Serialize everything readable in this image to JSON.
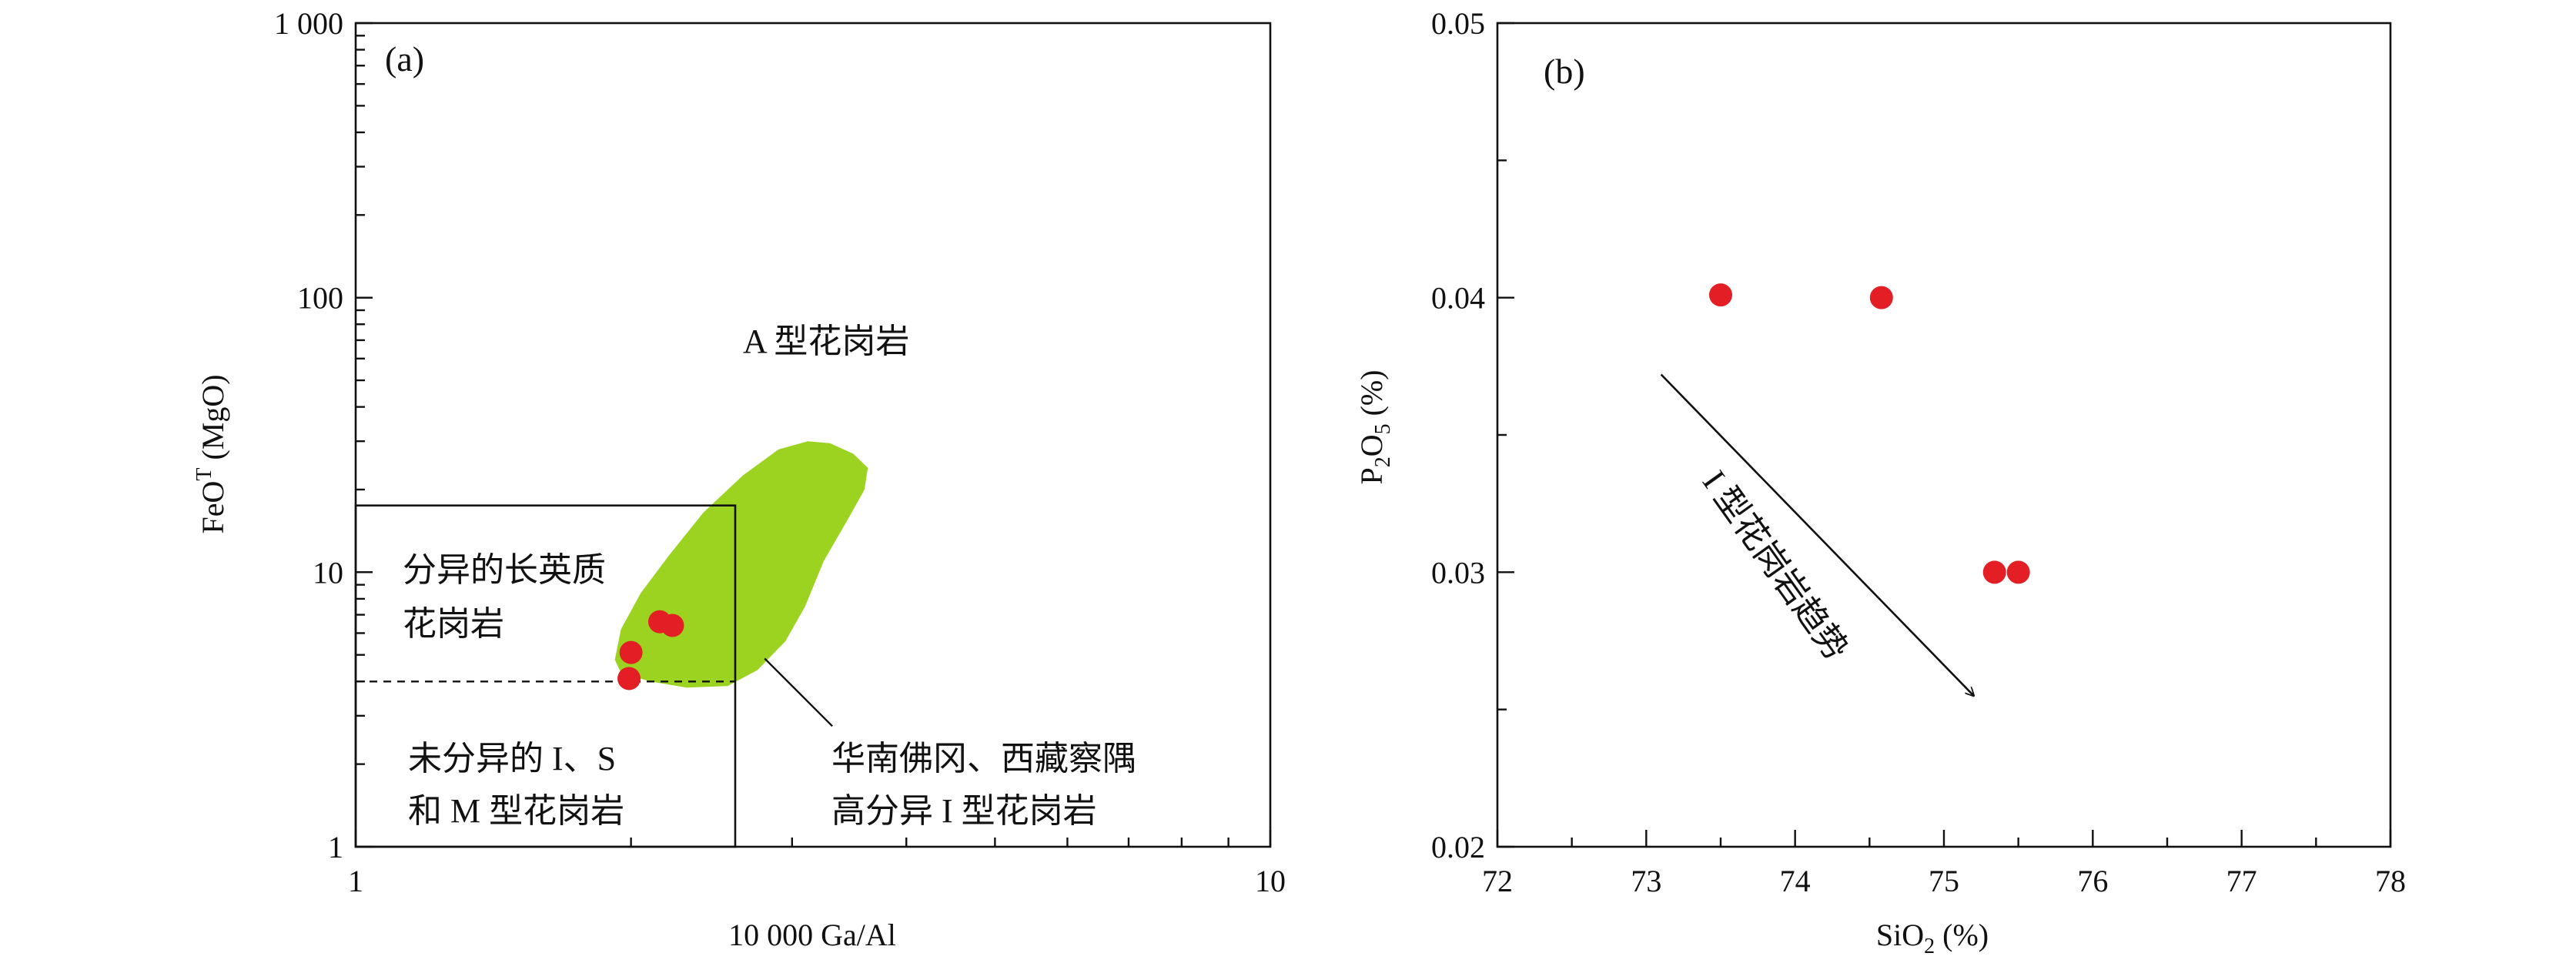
{
  "colors": {
    "point": "#e31e24",
    "field": "#9bd320",
    "axis": "#111111"
  },
  "chart_data": [
    {
      "type": "scatter",
      "panel_label": "(a)",
      "xlabel": "10 000 Ga/Al",
      "ylabel_prefix": "FeO",
      "ylabel_sup": "T",
      "ylabel_suffix": " (MgO)",
      "x_scale": "log",
      "y_scale": "log",
      "xlim": [
        1,
        10
      ],
      "ylim": [
        1,
        1000
      ],
      "x_ticks": [
        {
          "value": 1,
          "label": "1"
        },
        {
          "value": 10,
          "label": "10"
        }
      ],
      "y_ticks": [
        {
          "value": 1,
          "label": "1"
        },
        {
          "value": 10,
          "label": "10"
        },
        {
          "value": 100,
          "label": "100"
        },
        {
          "value": 1000,
          "label": "1 000"
        }
      ],
      "points": [
        {
          "x": 2.0,
          "y": 5.1
        },
        {
          "x": 1.99,
          "y": 4.1
        },
        {
          "x": 2.15,
          "y": 6.6
        },
        {
          "x": 2.22,
          "y": 6.4
        }
      ],
      "regions": {
        "a_type": "A 型花岗岩",
        "fractionated_line1": "分异的长英质",
        "fractionated_line2": "花岗岩",
        "unfractionated_line1": "未分异的 I、S",
        "unfractionated_line2": "和 M 型花岗岩",
        "south_china_line1": "华南佛冈、西藏察隅",
        "south_china_line2": "高分异 I 型花岗岩"
      },
      "fractionated_box": {
        "x_max": 2.6,
        "y_max": 17.5
      },
      "dashed_line_y": 4.0,
      "field_polygon": [
        [
          1.92,
          4.8
        ],
        [
          1.95,
          6.2
        ],
        [
          2.05,
          8.4
        ],
        [
          2.2,
          11.5
        ],
        [
          2.4,
          16.5
        ],
        [
          2.65,
          22.5
        ],
        [
          2.9,
          28.0
        ],
        [
          3.12,
          30.0
        ],
        [
          3.3,
          29.5
        ],
        [
          3.5,
          27.0
        ],
        [
          3.63,
          24.0
        ],
        [
          3.6,
          20.0
        ],
        [
          3.45,
          15.5
        ],
        [
          3.25,
          11.0
        ],
        [
          3.1,
          7.5
        ],
        [
          2.95,
          5.6
        ],
        [
          2.75,
          4.4
        ],
        [
          2.55,
          3.85
        ],
        [
          2.3,
          3.8
        ],
        [
          2.1,
          4.0
        ],
        [
          1.95,
          4.3
        ]
      ],
      "leader_line": [
        [
          2.8,
          4.85
        ],
        [
          3.32,
          2.75
        ]
      ]
    },
    {
      "type": "scatter",
      "panel_label": "(b)",
      "xlabel_prefix": "SiO",
      "xlabel_sub": "2",
      "xlabel_suffix": " (%)",
      "ylabel_p": "P",
      "ylabel_sub1": "2",
      "ylabel_o": "O",
      "ylabel_sub2": "5",
      "ylabel_suffix": " (%)",
      "xlim": [
        72,
        78
      ],
      "ylim": [
        0.02,
        0.05
      ],
      "x_ticks": [
        {
          "value": 72,
          "label": "72"
        },
        {
          "value": 73,
          "label": "73"
        },
        {
          "value": 74,
          "label": "74"
        },
        {
          "value": 75,
          "label": "75"
        },
        {
          "value": 76,
          "label": "76"
        },
        {
          "value": 77,
          "label": "77"
        },
        {
          "value": 78,
          "label": "78"
        }
      ],
      "y_ticks": [
        {
          "value": 0.02,
          "label": "0.02"
        },
        {
          "value": 0.03,
          "label": "0.03"
        },
        {
          "value": 0.04,
          "label": "0.04"
        },
        {
          "value": 0.05,
          "label": "0.05"
        }
      ],
      "points": [
        {
          "x": 73.5,
          "y": 0.0401
        },
        {
          "x": 74.58,
          "y": 0.04
        },
        {
          "x": 75.34,
          "y": 0.03
        },
        {
          "x": 75.5,
          "y": 0.03
        }
      ],
      "trend_label": "I 型花岗岩趋势",
      "trend_arrow": [
        [
          73.1,
          0.0372
        ],
        [
          75.2,
          0.0255
        ]
      ]
    }
  ]
}
